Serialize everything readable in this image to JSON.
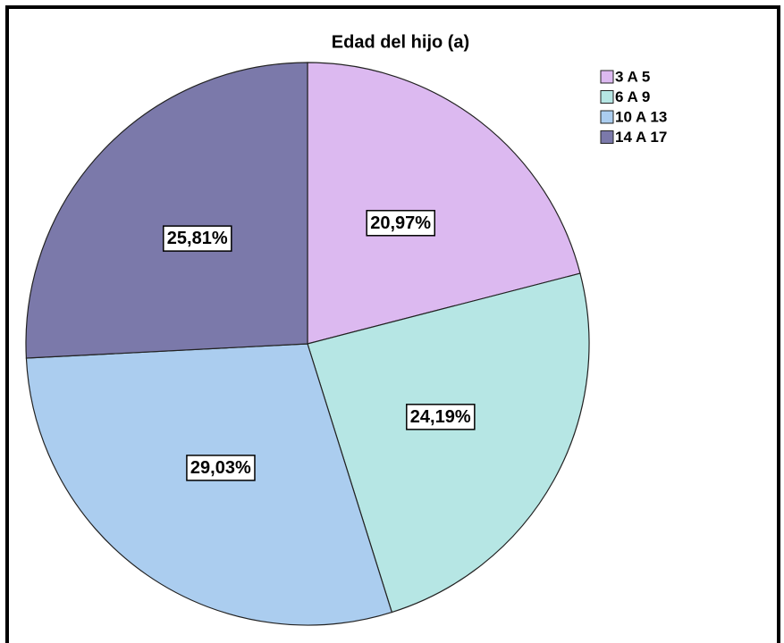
{
  "chart_data": {
    "type": "pie",
    "title": "Edad del hijo (a)",
    "categories": [
      "3 A 5",
      "6 A 9",
      "10 A 13",
      "14 A 17"
    ],
    "values": [
      20.97,
      24.19,
      29.03,
      25.81
    ],
    "value_labels": [
      "20,97%",
      "24,19%",
      "29,03%",
      "25,81%"
    ],
    "colors": [
      "#dcb9f0",
      "#b6e6e4",
      "#abcdef",
      "#7b79aa"
    ],
    "legend": "top-right"
  }
}
